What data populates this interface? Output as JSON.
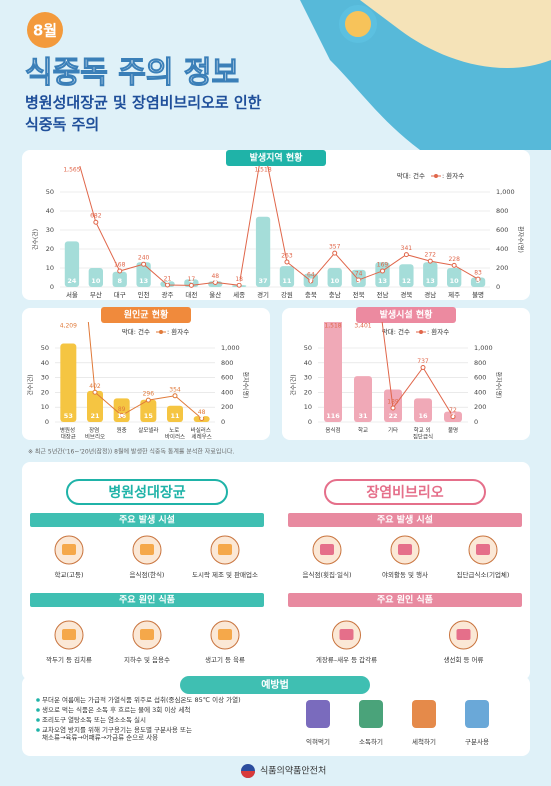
{
  "header": {
    "month": "8월",
    "title": "식중독 주의 정보",
    "subtitle": [
      "병원성대장균 및 장염비브리오로 인한",
      "식중독 주의"
    ]
  },
  "chart_data": [
    {
      "type": "combo",
      "title": "발생지역 현황",
      "x_label": null,
      "y_label": "건수(건)",
      "y2_label": "환자수(명)",
      "categories": [
        "서울",
        "부산",
        "대구",
        "인천",
        "광주",
        "대전",
        "울산",
        "세종",
        "경기",
        "강원",
        "충북",
        "충남",
        "전북",
        "전남",
        "경북",
        "경남",
        "제주",
        "불명"
      ],
      "series": [
        {
          "name": "막대: 건수",
          "color": "#a5ddd9",
          "values": [
            24,
            10,
            8,
            13,
            3,
            4,
            3,
            1,
            37,
            11,
            7,
            10,
            9,
            13,
            12,
            13,
            10,
            5
          ]
        },
        {
          "name": ": 환자수",
          "color": "#e0664a",
          "axis": "y2",
          "values": [
            1565,
            682,
            168,
            240,
            21,
            17,
            48,
            18,
            1518,
            263,
            64,
            357,
            74,
            169,
            341,
            272,
            228,
            83
          ],
          "value_labels": [
            "1,565",
            "682",
            "168",
            "240",
            "21",
            "17",
            "48",
            "18",
            "1,518",
            "263",
            "64",
            "357",
            "74",
            "169",
            "341",
            "272",
            "228",
            "83"
          ]
        }
      ],
      "ylim": [
        0,
        50
      ],
      "yticks": [
        0,
        10,
        20,
        30,
        40,
        50
      ],
      "y2lim": [
        0,
        1000
      ],
      "y2ticks": [
        0,
        200,
        400,
        600,
        800,
        {
          "value": 1000,
          "label": "1,000"
        }
      ],
      "grid": true
    },
    {
      "type": "combo",
      "title": "원인균 현황",
      "y_label": "건수(건)",
      "y2_label": "환자수(명)",
      "categories": [
        "병원성\n대장균",
        "장염\n비브리오",
        "원충",
        "살모넬라",
        "노로\n바이러스",
        "바실러스\n세레우스"
      ],
      "series": [
        {
          "name": "막대: 건수",
          "color": "#f5c542",
          "values": [
            53,
            21,
            16,
            15,
            11,
            4
          ]
        },
        {
          "name": ": 환자수",
          "color": "#e07a3a",
          "axis": "y2",
          "values": [
            4209,
            402,
            89,
            296,
            354,
            48
          ],
          "value_labels": [
            "4,209",
            "402",
            "89",
            "296",
            "354",
            "48"
          ]
        }
      ],
      "ylim": [
        0,
        50
      ],
      "yticks": [
        0,
        10,
        20,
        30,
        40,
        50
      ],
      "y2lim": [
        0,
        1000
      ],
      "y2ticks": [
        0,
        200,
        400,
        600,
        800,
        {
          "value": 1000,
          "label": "1,000"
        }
      ],
      "grid": true
    },
    {
      "type": "combo",
      "title": "발생시설 현황",
      "y_label": "건수(건)",
      "y2_label": "환자수(명)",
      "categories": [
        "음식점",
        "학교",
        "기타",
        "학교 외\n집단급식",
        "불명"
      ],
      "series": [
        {
          "name": "막대: 건수",
          "color": "#f0a9b7",
          "values": [
            116,
            31,
            22,
            16,
            7
          ]
        },
        {
          "name": ": 환자수",
          "color": "#e0664a",
          "axis": "y2",
          "values": [
            1518,
            3401,
            189,
            737,
            72
          ],
          "value_labels": [
            "1,518",
            "3,401",
            "189",
            "737",
            "72"
          ]
        }
      ],
      "ylim": [
        0,
        50
      ],
      "yticks": [
        0,
        10,
        20,
        30,
        40,
        50
      ],
      "y2lim": [
        0,
        1000
      ],
      "y2ticks": [
        0,
        200,
        400,
        600,
        800,
        {
          "value": 1000,
          "label": "1,000"
        }
      ],
      "grid": true
    }
  ],
  "note": "※ 최근 5년간('16~'20년(잠정)) 8월에 발생한 식중독 통계를 분석한 자료입니다.",
  "sections": [
    {
      "title": "병원성대장균",
      "facilities_title": "주요 발생 시설",
      "facilities": [
        "학교(고등)",
        "음식점(한식)",
        "도시락 제조 및 판매업소"
      ],
      "foods_title": "주요 원인 식품",
      "foods": [
        "깍두기 등 김치류",
        "지하수 및 음용수",
        "생고기 등 육류"
      ]
    },
    {
      "title": "장염비브리오",
      "facilities_title": "주요 발생 시설",
      "facilities": [
        "음식점(횟집·일식)",
        "야외활동 및 행사",
        "집단급식소(기업체)"
      ],
      "foods_title": "주요 원인 식품",
      "foods": [
        "게장류–새우 등 갑각류",
        "생선회 등 어류"
      ]
    }
  ],
  "prevention": {
    "title": "예방법",
    "bullets": [
      "무더운 여름에는 가급적 가열식품 위주로 섭취(중심온도 85℃ 이상 가열)",
      "생으로 먹는 식품은 소독 후 흐르는 물에 3회 이상 세척",
      "조리도구 열탕소독 또는 염소소독 실시",
      "교차오염 방지를 위해 기구용기는 용도별 구분사용 또는\n채소류→육류→어패류→가금류 순으로 사용"
    ],
    "icons": [
      "익혀먹기",
      "소독하기",
      "세척하기",
      "구분사용"
    ]
  },
  "footer": "식품의약품안전처"
}
